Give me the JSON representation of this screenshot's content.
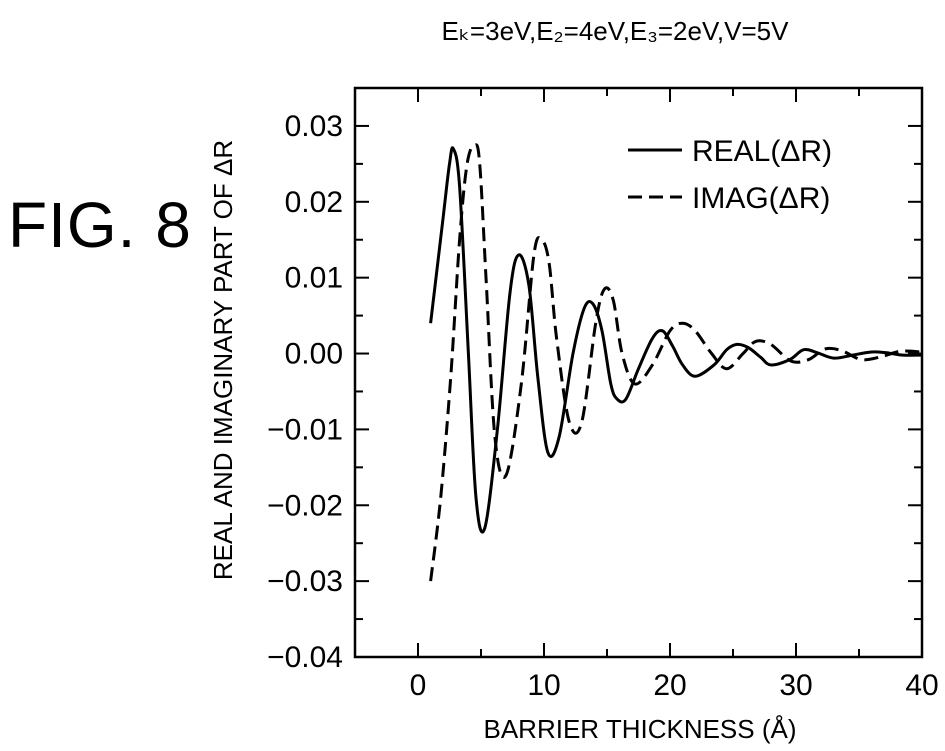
{
  "figure_label": "FIG. 8",
  "chart_data": {
    "type": "line",
    "title": "Eₖ=3eV,E₂=4eV,E₃=2eV,V=5V",
    "xlabel": "BARRIER THICKNESS (Å)",
    "ylabel": "REAL AND IMAGINARY PART OF ΔR",
    "xlim": [
      -5,
      40
    ],
    "ylim": [
      -0.04,
      0.035
    ],
    "xticks": [
      0,
      10,
      20,
      30,
      40
    ],
    "xtick_labels": [
      "0",
      "10",
      "20",
      "30",
      "40"
    ],
    "yticks": [
      0.03,
      0.02,
      0.01,
      0.0,
      -0.01,
      -0.02,
      -0.03,
      -0.04
    ],
    "ytick_labels": [
      "0.03",
      "0.02",
      "0.01",
      "0.00",
      "−0.01",
      "−0.02",
      "−0.03",
      "−0.04"
    ],
    "grid": false,
    "legend_position": "top-right",
    "series": [
      {
        "name": "REAL(ΔR)",
        "style": "solid",
        "color": "#000000",
        "x": [
          1.0,
          2.0,
          2.5,
          2.8,
          3.3,
          4.0,
          4.6,
          5.3,
          6.3,
          7.3,
          8.0,
          8.8,
          9.5,
          10.3,
          11.2,
          12.3,
          13.2,
          13.9,
          14.6,
          15.3,
          15.8,
          16.5,
          17.5,
          18.6,
          19.4,
          20.2,
          21.0,
          22.0,
          23.5,
          24.5,
          25.3,
          26.2,
          27.2,
          28.0,
          29.5,
          30.6,
          31.7,
          33.0,
          34.5,
          36.0,
          37.2,
          38.5,
          40.0
        ],
        "y": [
          0.004,
          0.018,
          0.025,
          0.027,
          0.022,
          0.0,
          -0.019,
          -0.023,
          -0.01,
          0.008,
          0.013,
          0.009,
          -0.003,
          -0.013,
          -0.011,
          0.0,
          0.006,
          0.0065,
          0.003,
          -0.004,
          -0.006,
          -0.006,
          -0.002,
          0.002,
          0.003,
          0.001,
          -0.0015,
          -0.003,
          -0.0015,
          0.0005,
          0.0012,
          0.0008,
          -0.0005,
          -0.0015,
          -0.0008,
          0.0005,
          0.0001,
          -0.0006,
          -0.0002,
          0.0002,
          0.0001,
          -0.0002,
          -0.0002
        ]
      },
      {
        "name": "IMAG(ΔR)",
        "style": "dashed",
        "color": "#000000",
        "x": [
          1.0,
          1.8,
          2.6,
          3.3,
          3.9,
          4.5,
          4.9,
          5.4,
          6.1,
          7.0,
          8.2,
          9.2,
          9.8,
          10.4,
          11.0,
          12.0,
          13.0,
          14.1,
          14.8,
          15.5,
          16.2,
          17.2,
          18.6,
          20.0,
          21.0,
          22.0,
          23.3,
          24.5,
          25.8,
          26.8,
          28.0,
          29.6,
          31.0,
          32.3,
          33.6,
          35.2,
          36.8,
          38.3,
          40.0
        ],
        "y": [
          -0.03,
          -0.019,
          -0.003,
          0.015,
          0.025,
          0.0275,
          0.025,
          0.01,
          -0.011,
          -0.016,
          -0.004,
          0.013,
          0.015,
          0.012,
          0.002,
          -0.009,
          -0.009,
          0.004,
          0.0085,
          0.007,
          0.0,
          -0.004,
          -0.0015,
          0.003,
          0.004,
          0.003,
          0.0,
          -0.002,
          0.0,
          0.0016,
          0.0012,
          -0.001,
          -0.0008,
          0.0006,
          0.0004,
          -0.0008,
          -0.0004,
          0.0003,
          0.0002
        ]
      }
    ]
  }
}
